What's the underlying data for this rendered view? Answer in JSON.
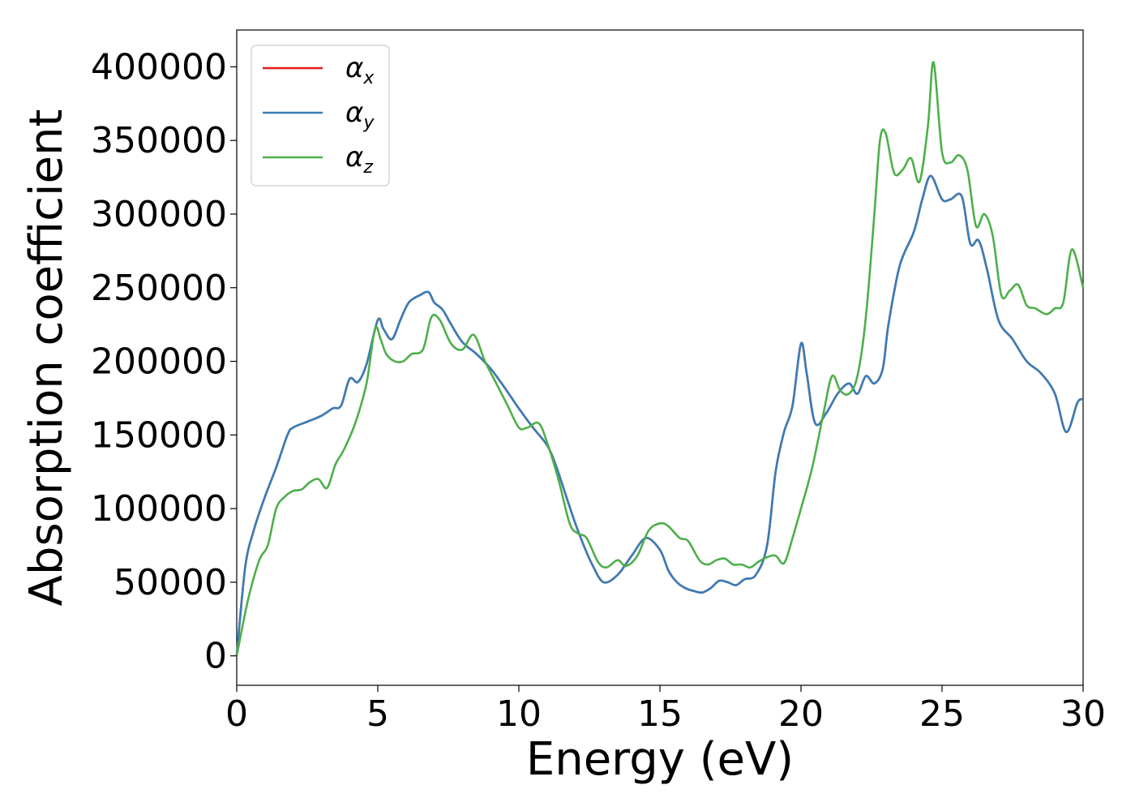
{
  "chart_data": {
    "type": "line",
    "xlabel": "Energy (eV)",
    "ylabel": "Absorption coefficient",
    "xlim": [
      0,
      30
    ],
    "ylim": [
      -20000,
      425000
    ],
    "xticks": [
      0,
      5,
      10,
      15,
      20,
      25,
      30
    ],
    "xtick_labels": [
      "0",
      "5",
      "10",
      "15",
      "20",
      "25",
      "30"
    ],
    "yticks": [
      0,
      50000,
      100000,
      150000,
      200000,
      250000,
      300000,
      350000,
      400000
    ],
    "ytick_labels": [
      "0",
      "50000",
      "100000",
      "150000",
      "200000",
      "250000",
      "300000",
      "350000",
      "400000"
    ],
    "grid": false,
    "legend_position": "top-left",
    "series": [
      {
        "name": "α_x",
        "symbol": "α",
        "subscript": "x",
        "color": "#e41a1c",
        "x": [
          0,
          0.3,
          0.6,
          1.0,
          1.4,
          1.8,
          2.0,
          2.5,
          3.0,
          3.4,
          3.7,
          4.0,
          4.3,
          4.6,
          5.0,
          5.2,
          5.5,
          5.8,
          6.1,
          6.5,
          6.8,
          7.0,
          7.3,
          7.6,
          8.0,
          8.5,
          9.0,
          9.5,
          10.0,
          10.5,
          11.0,
          11.3,
          11.7,
          12.0,
          12.3,
          12.6,
          13.0,
          13.5,
          14.0,
          14.5,
          15.0,
          15.3,
          15.6,
          15.9,
          16.2,
          16.5,
          16.8,
          17.1,
          17.4,
          17.7,
          18.0,
          18.4,
          18.8,
          19.1,
          19.4,
          19.7,
          20.0,
          20.2,
          20.5,
          20.9,
          21.3,
          21.7,
          22.0,
          22.3,
          22.6,
          22.9,
          23.1,
          23.5,
          24.0,
          24.3,
          24.6,
          25.0,
          25.3,
          25.7,
          26.0,
          26.3,
          26.6,
          27.0,
          27.5,
          28.0,
          28.5,
          29.0,
          29.4,
          29.8,
          30.0
        ],
        "values": [
          0,
          60000,
          85000,
          108000,
          128000,
          150000,
          155000,
          159000,
          163000,
          168000,
          170000,
          188000,
          186000,
          198000,
          228000,
          222000,
          215000,
          228000,
          240000,
          245000,
          247000,
          240000,
          235000,
          225000,
          213000,
          205000,
          195000,
          182000,
          168000,
          155000,
          143000,
          130000,
          107000,
          90000,
          75000,
          62000,
          50000,
          55000,
          68000,
          80000,
          72000,
          58000,
          50000,
          46000,
          44000,
          43000,
          46000,
          51000,
          50000,
          48000,
          52000,
          55000,
          75000,
          125000,
          152000,
          170000,
          212000,
          192000,
          158000,
          165000,
          178000,
          185000,
          178000,
          190000,
          185000,
          195000,
          225000,
          265000,
          288000,
          310000,
          326000,
          310000,
          310000,
          312000,
          280000,
          282000,
          262000,
          228000,
          215000,
          200000,
          192000,
          178000,
          152000,
          172000,
          174000
        ]
      },
      {
        "name": "α_y",
        "symbol": "α",
        "subscript": "y",
        "color": "#377eb8",
        "x": [
          0,
          0.3,
          0.6,
          1.0,
          1.4,
          1.8,
          2.0,
          2.5,
          3.0,
          3.4,
          3.7,
          4.0,
          4.3,
          4.6,
          5.0,
          5.2,
          5.5,
          5.8,
          6.1,
          6.5,
          6.8,
          7.0,
          7.3,
          7.6,
          8.0,
          8.5,
          9.0,
          9.5,
          10.0,
          10.5,
          11.0,
          11.3,
          11.7,
          12.0,
          12.3,
          12.6,
          13.0,
          13.5,
          14.0,
          14.5,
          15.0,
          15.3,
          15.6,
          15.9,
          16.2,
          16.5,
          16.8,
          17.1,
          17.4,
          17.7,
          18.0,
          18.4,
          18.8,
          19.1,
          19.4,
          19.7,
          20.0,
          20.2,
          20.5,
          20.9,
          21.3,
          21.7,
          22.0,
          22.3,
          22.6,
          22.9,
          23.1,
          23.5,
          24.0,
          24.3,
          24.6,
          25.0,
          25.3,
          25.7,
          26.0,
          26.3,
          26.6,
          27.0,
          27.5,
          28.0,
          28.5,
          29.0,
          29.4,
          29.8,
          30.0
        ],
        "values": [
          0,
          60000,
          85000,
          108000,
          128000,
          150000,
          155000,
          159000,
          163000,
          168000,
          170000,
          188000,
          186000,
          198000,
          228000,
          222000,
          215000,
          228000,
          240000,
          245000,
          247000,
          240000,
          235000,
          225000,
          213000,
          205000,
          195000,
          182000,
          168000,
          155000,
          143000,
          130000,
          107000,
          90000,
          75000,
          62000,
          50000,
          55000,
          68000,
          80000,
          72000,
          58000,
          50000,
          46000,
          44000,
          43000,
          46000,
          51000,
          50000,
          48000,
          52000,
          55000,
          75000,
          125000,
          152000,
          170000,
          212000,
          192000,
          158000,
          165000,
          178000,
          185000,
          178000,
          190000,
          185000,
          195000,
          225000,
          265000,
          288000,
          310000,
          326000,
          310000,
          310000,
          312000,
          280000,
          282000,
          262000,
          228000,
          215000,
          200000,
          192000,
          178000,
          152000,
          172000,
          174000
        ]
      },
      {
        "name": "α_z",
        "symbol": "α",
        "subscript": "z",
        "color": "#4daf4a",
        "x": [
          0,
          0.4,
          0.8,
          1.1,
          1.4,
          1.7,
          2.0,
          2.3,
          2.6,
          2.9,
          3.2,
          3.5,
          3.8,
          4.2,
          4.6,
          4.9,
          5.1,
          5.3,
          5.6,
          5.9,
          6.2,
          6.6,
          6.9,
          7.2,
          7.6,
          8.0,
          8.4,
          8.8,
          9.2,
          9.6,
          10.0,
          10.3,
          10.7,
          11.0,
          11.4,
          11.8,
          12.1,
          12.4,
          12.8,
          13.1,
          13.5,
          13.8,
          14.2,
          14.6,
          15.0,
          15.3,
          15.7,
          16.0,
          16.4,
          16.7,
          17.0,
          17.3,
          17.6,
          17.9,
          18.2,
          18.5,
          18.8,
          19.1,
          19.4,
          19.7,
          20.0,
          20.4,
          20.8,
          21.1,
          21.4,
          21.7,
          22.0,
          22.3,
          22.6,
          22.8,
          23.0,
          23.3,
          23.6,
          23.9,
          24.2,
          24.5,
          24.7,
          25.0,
          25.3,
          25.6,
          25.9,
          26.2,
          26.5,
          26.8,
          27.1,
          27.4,
          27.7,
          28.0,
          28.3,
          28.7,
          29.0,
          29.3,
          29.6,
          30.0
        ],
        "values": [
          0,
          38000,
          65000,
          75000,
          100000,
          108000,
          112000,
          113000,
          118000,
          120000,
          114000,
          130000,
          140000,
          158000,
          185000,
          222000,
          215000,
          205000,
          200000,
          200000,
          205000,
          208000,
          230000,
          228000,
          212000,
          208000,
          218000,
          200000,
          185000,
          170000,
          155000,
          155000,
          158000,
          145000,
          120000,
          90000,
          83000,
          80000,
          64000,
          60000,
          65000,
          61000,
          68000,
          85000,
          90000,
          88000,
          80000,
          78000,
          65000,
          62000,
          65000,
          66000,
          62000,
          62000,
          60000,
          64000,
          67000,
          68000,
          63000,
          80000,
          100000,
          128000,
          165000,
          190000,
          180000,
          178000,
          190000,
          230000,
          300000,
          350000,
          355000,
          328000,
          330000,
          338000,
          322000,
          360000,
          403000,
          342000,
          335000,
          340000,
          330000,
          292000,
          300000,
          285000,
          245000,
          248000,
          252000,
          238000,
          236000,
          232000,
          236000,
          240000,
          276000,
          250000
        ]
      }
    ]
  }
}
